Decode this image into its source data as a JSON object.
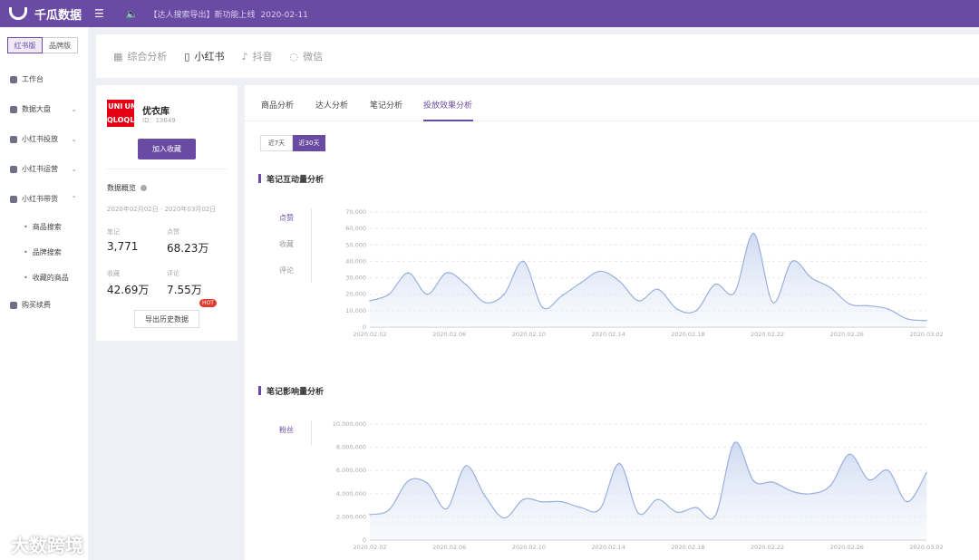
{
  "header": {
    "brand": "千瓜数据",
    "notice": "【达人搜索导出】新功能上线",
    "notice_date": "2020-02-11"
  },
  "sidebar": {
    "segments": [
      "红书版",
      "品牌版"
    ],
    "items": [
      {
        "label": "工作台"
      },
      {
        "label": "数据大盘"
      },
      {
        "label": "小红书投放"
      },
      {
        "label": "小红书运营"
      },
      {
        "label": "小红书带货"
      }
    ],
    "sub_items": [
      "商品搜索",
      "品牌搜索",
      "收藏的商品"
    ],
    "extra_item": "购买续费"
  },
  "channels": [
    "综合分析",
    "小红书",
    "抖音",
    "微信"
  ],
  "brand_card": {
    "logo_text": [
      "UNI",
      "QLO",
      "UNI",
      "QLO"
    ],
    "name": "优衣库",
    "id_label": "ID：13649",
    "follow_button": "加入收藏",
    "overview_label": "数据概览",
    "date_range": "2020年02月02日 - 2020年03月02日",
    "stats": [
      {
        "label": "笔记",
        "value": "3,771"
      },
      {
        "label": "点赞",
        "value": "68.23万"
      },
      {
        "label": "收藏",
        "value": "42.69万"
      },
      {
        "label": "评论",
        "value": "7.55万"
      }
    ],
    "export_button": "导出历史数据",
    "hot_badge": "HOT"
  },
  "subtabs": [
    "商品分析",
    "达人分析",
    "笔记分析",
    "投放效果分析"
  ],
  "day_ranges": [
    "近7天",
    "近30天"
  ],
  "sections": {
    "interaction_title": "笔记互动量分析",
    "interaction_legend": [
      "点赞",
      "收藏",
      "评论"
    ],
    "influence_title": "笔记影响量分析",
    "influence_legend": [
      "粉丝"
    ]
  },
  "watermark": "大数跨境",
  "colors": {
    "accent": "#6a4ba3",
    "line": "#9bb0e0",
    "fill": "#e6ecf8"
  },
  "chart_data": [
    {
      "type": "area",
      "title": "笔记互动量分析",
      "series_name": "点赞",
      "xticks": [
        "2020.02.02",
        "2020.02.06",
        "2020.02.10",
        "2020.02.14",
        "2020.02.18",
        "2020.02.22",
        "2020.02.26",
        "2020.03.02"
      ],
      "yticks": [
        "70,000",
        "60,000",
        "50,000",
        "40,000",
        "30,000",
        "20,000",
        "10,000",
        "0"
      ],
      "ylim": [
        0,
        70000
      ],
      "x": [
        0,
        1,
        2,
        3,
        4,
        5,
        6,
        7,
        8,
        9,
        10,
        11,
        12,
        13,
        14,
        15,
        16,
        17,
        18,
        19,
        20,
        21,
        22,
        23,
        24,
        25,
        26,
        27,
        28,
        29
      ],
      "values": [
        16000,
        20000,
        33000,
        20000,
        33000,
        26000,
        15000,
        20000,
        40000,
        12000,
        19000,
        27000,
        34000,
        28000,
        16000,
        23000,
        11000,
        10000,
        26000,
        21000,
        57000,
        15000,
        40000,
        30000,
        24000,
        14000,
        13000,
        11000,
        5000,
        4000
      ]
    },
    {
      "type": "area",
      "title": "笔记影响量分析",
      "series_name": "粉丝",
      "xticks": [
        "2020.02.02",
        "2020.02.06",
        "2020.02.10",
        "2020.02.14",
        "2020.02.18",
        "2020.02.22",
        "2020.02.26",
        "2020.03.02"
      ],
      "yticks": [
        "10,000,000",
        "8,000,000",
        "6,000,000",
        "4,000,000",
        "2,000,000",
        "0"
      ],
      "ylim": [
        0,
        10000000
      ],
      "x": [
        0,
        1,
        2,
        3,
        4,
        5,
        6,
        7,
        8,
        9,
        10,
        11,
        12,
        13,
        14,
        15,
        16,
        17,
        18,
        19,
        20,
        21,
        22,
        23,
        24,
        25,
        26,
        27,
        28,
        29
      ],
      "values": [
        2200000,
        2600000,
        5100000,
        4900000,
        2700000,
        6400000,
        3800000,
        1900000,
        3500000,
        3300000,
        3300000,
        2800000,
        2700000,
        6600000,
        2300000,
        3500000,
        2400000,
        2800000,
        2100000,
        8400000,
        5100000,
        5000000,
        4200000,
        4000000,
        4700000,
        7400000,
        5200000,
        6000000,
        3300000,
        5800000
      ]
    }
  ]
}
